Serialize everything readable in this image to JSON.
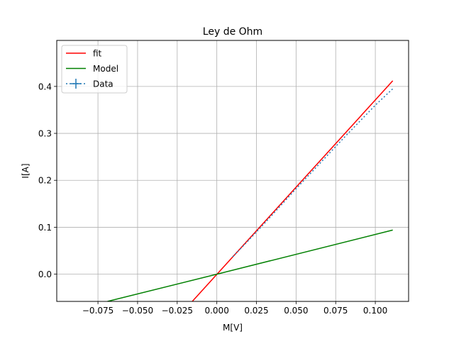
{
  "chart_data": {
    "type": "line",
    "title": "Ley de Ohm",
    "xlabel": "M[V]",
    "ylabel": "I[A]",
    "xlim": [
      -0.101,
      0.121
    ],
    "ylim": [
      -0.058,
      0.498
    ],
    "grid": true,
    "legend_position": "top-left",
    "x_ticks": [
      -0.075,
      -0.05,
      -0.025,
      0.0,
      0.025,
      0.05,
      0.075,
      0.1
    ],
    "x_tick_labels": [
      "−0.075",
      "−0.050",
      "−0.025",
      "0.000",
      "0.025",
      "0.050",
      "0.075",
      "0.100"
    ],
    "y_ticks": [
      0.0,
      0.1,
      0.2,
      0.3,
      0.4
    ],
    "y_tick_labels": [
      "0.0",
      "0.1",
      "0.2",
      "0.3",
      "0.4"
    ],
    "series": [
      {
        "name": "fit",
        "color": "#ff0000",
        "style": "solid",
        "x": [
          -0.0155,
          0.111
        ],
        "y": [
          -0.058,
          0.412
        ]
      },
      {
        "name": "Model",
        "color": "#008000",
        "style": "solid",
        "x": [
          -0.069,
          0.0,
          0.111
        ],
        "y": [
          -0.058,
          0.0,
          0.094
        ]
      },
      {
        "name": "Data",
        "color": "#1f77b4",
        "style": "dotted",
        "marker": "errorbar-cross",
        "x": [
          0.01,
          0.02,
          0.03,
          0.04,
          0.05,
          0.06,
          0.07,
          0.08,
          0.09,
          0.1,
          0.111
        ],
        "y": [
          0.037,
          0.072,
          0.108,
          0.145,
          0.182,
          0.218,
          0.254,
          0.29,
          0.325,
          0.36,
          0.395
        ]
      }
    ]
  }
}
